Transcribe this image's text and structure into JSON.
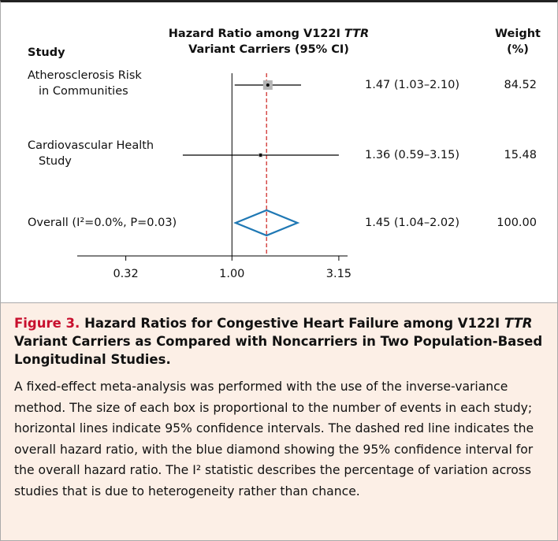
{
  "chart_data": {
    "type": "forest",
    "column_headers": {
      "study": "Study",
      "estimate": [
        "Hazard Ratio among V122I",
        "TTR",
        "Variant Carriers (95% CI)"
      ],
      "weight": "Weight (%)"
    },
    "studies": {
      "categories": [
        [
          "Atherosclerosis Risk",
          "in Communities"
        ],
        [
          "Cardiovascular Health",
          "Study"
        ]
      ],
      "values": [
        1.47,
        1.36
      ],
      "lower": [
        1.03,
        0.59
      ],
      "upper": [
        2.1,
        3.15
      ],
      "value_labels": [
        "1.47 (1.03–2.10)",
        "1.36 (0.59–3.15)"
      ],
      "weights": [
        84.52,
        15.48
      ]
    },
    "overall": {
      "label": "Overall (I²=0.0%, P=0.03)",
      "value": 1.45,
      "lower": 1.04,
      "upper": 2.02,
      "value_label": "1.45 (1.04–2.02)",
      "weight": 100,
      "weight_label": "100.00"
    },
    "x_scale": "log",
    "xlim": [
      0.19,
      3.46
    ],
    "xticks": [
      0.32,
      {
        "value": 1,
        "label": "1.00"
      },
      3.15
    ],
    "box_color": "#b5b5b5",
    "line_color": "#000000",
    "overall_line_color": "#d0312d",
    "diamond_color": "#1f78b4"
  },
  "caption": {
    "label": "Figure 3.",
    "title_parts": [
      "Hazard Ratios for Congestive Heart Failure among V122I",
      "TTR",
      "Variant Carriers as Compared with Noncarriers in Two Population-Based Longitudinal Studies."
    ],
    "text": "A fixed-effect meta-analysis was performed with the use of the inverse-variance method. The size of each box is proportional to the number of events in each study; horizontal lines indicate 95% confidence intervals. The dashed red line indicates the overall hazard ratio, with the blue diamond showing the 95% confidence interval for the overall hazard ratio. The I² statistic describes the percentage of variation across studies that is due to heterogeneity rather than chance."
  }
}
